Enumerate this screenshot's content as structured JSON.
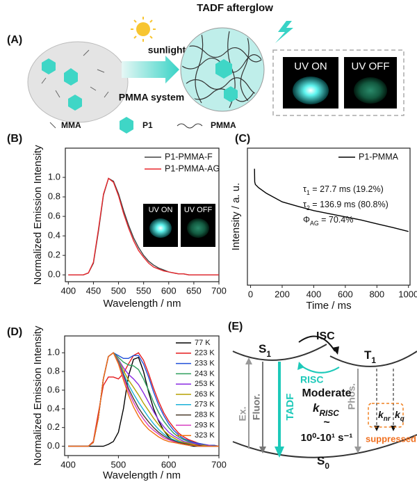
{
  "panel_a": {
    "label": "(A)",
    "sunlight": "sunlight",
    "system": "PMMA system",
    "afterglow": "TADF afterglow",
    "uv_on": "UV ON",
    "uv_off": "UV OFF",
    "legend": [
      "MMA",
      "P1",
      "PMMA"
    ]
  },
  "chart_data": [
    {
      "type": "line",
      "panel_label": "(B)",
      "ylabel": "Normalized Emission Intensity",
      "xlabel": "Wavelength / nm",
      "xlim": [
        394,
        700
      ],
      "ylim": [
        -0.07,
        1.3
      ],
      "xticks": [
        400,
        450,
        500,
        550,
        600,
        650,
        700
      ],
      "yticks": [
        {
          "value": 0,
          "label": "0.0"
        },
        0.2,
        0.4,
        0.6,
        0.8,
        {
          "value": 1,
          "label": "1.0"
        }
      ],
      "legend": "upper right",
      "inset_labels": [
        "UV ON",
        "UV OFF"
      ],
      "x": [
        400,
        410,
        420,
        430,
        440,
        450,
        460,
        470,
        480,
        490,
        500,
        510,
        520,
        530,
        540,
        550,
        560,
        570,
        580,
        590,
        600,
        610,
        620,
        630,
        640,
        650,
        660,
        670,
        680,
        690,
        700
      ],
      "series": [
        {
          "name": "P1-PMMA-F",
          "color": "#404040",
          "values": [
            0,
            0,
            0,
            0,
            0.02,
            0.12,
            0.45,
            0.82,
            0.99,
            0.96,
            0.83,
            0.66,
            0.51,
            0.38,
            0.28,
            0.2,
            0.14,
            0.1,
            0.07,
            0.05,
            0.03,
            0.02,
            0.01,
            0.01,
            0,
            0,
            0,
            0,
            0,
            0,
            0
          ]
        },
        {
          "name": "P1-PMMA-AG",
          "color": "#e8262b",
          "values": [
            0,
            0,
            0,
            0,
            0.02,
            0.13,
            0.47,
            0.83,
            0.99,
            0.95,
            0.81,
            0.63,
            0.48,
            0.35,
            0.25,
            0.18,
            0.12,
            0.08,
            0.06,
            0.04,
            0.03,
            0.02,
            0.01,
            0.01,
            0,
            0,
            0,
            0,
            0,
            0,
            0
          ]
        }
      ]
    },
    {
      "type": "line",
      "panel_label": "(C)",
      "ylabel": "Intensity / a. u.",
      "xlabel": "Time / ms",
      "log_y": true,
      "xlim": [
        -20,
        1010
      ],
      "ylim": [
        1,
        3000
      ],
      "xticks": [
        0,
        200,
        400,
        600,
        800,
        1000
      ],
      "legend": "upper right",
      "annotations": [
        {
          "symbol": "τ",
          "sub": "1",
          "text": " = 27.7 ms (19.2%)"
        },
        {
          "symbol": "τ",
          "sub": "2",
          "text": " = 136.9 ms (80.8%)"
        },
        {
          "symbol": "Φ",
          "sub": "AG",
          "text": " = 70.4%"
        }
      ],
      "x": [
        25,
        26,
        30,
        50,
        100,
        200,
        300,
        400,
        500,
        600,
        700,
        800,
        900,
        1000
      ],
      "series": [
        {
          "name": "P1-PMMA",
          "color": "#000000",
          "values": [
            900,
            420,
            360,
            300,
            215,
            130,
            100,
            78,
            65,
            54,
            45,
            36,
            29,
            23
          ]
        }
      ]
    },
    {
      "type": "line",
      "panel_label": "(D)",
      "ylabel": "Normalized Emission Intensity",
      "xlabel": "Wavelength / nm",
      "xlim": [
        393,
        700
      ],
      "ylim": [
        -0.1,
        1.18
      ],
      "xticks": [
        400,
        500,
        600,
        700
      ],
      "yticks": [
        {
          "value": 0,
          "label": "0.0"
        },
        0.2,
        0.4,
        0.6,
        0.8,
        {
          "value": 1,
          "label": "1.0"
        }
      ],
      "legend": "upper right",
      "x": [
        400,
        410,
        420,
        430,
        440,
        450,
        460,
        470,
        480,
        490,
        500,
        510,
        520,
        530,
        540,
        550,
        560,
        570,
        580,
        590,
        600,
        610,
        620,
        630,
        640,
        650,
        660,
        670,
        680,
        690,
        700
      ],
      "series": [
        {
          "name": "77 K",
          "color": "#000000",
          "values": [
            0,
            0,
            0,
            0,
            0,
            0,
            0,
            0,
            0.02,
            0.05,
            0.15,
            0.4,
            0.75,
            0.93,
            0.95,
            0.8,
            0.58,
            0.4,
            0.27,
            0.17,
            0.1,
            0.06,
            0.03,
            0.02,
            0.01,
            0,
            0,
            0,
            0,
            0,
            0
          ]
        },
        {
          "name": "223 K",
          "color": "#e41a1c",
          "values": [
            0,
            0,
            0,
            0,
            0,
            0.05,
            0.35,
            0.65,
            0.74,
            0.74,
            0.72,
            0.78,
            0.88,
            0.97,
            1.0,
            0.92,
            0.78,
            0.62,
            0.48,
            0.36,
            0.27,
            0.2,
            0.14,
            0.1,
            0.07,
            0.05,
            0.03,
            0.02,
            0.01,
            0.01,
            0
          ]
        },
        {
          "name": "233 K",
          "color": "#1f4fd8",
          "values": [
            0,
            0,
            0,
            0,
            0,
            0.04,
            0.3,
            0.72,
            0.96,
            1.0,
            0.97,
            0.94,
            0.94,
            0.97,
            0.97,
            0.88,
            0.74,
            0.58,
            0.44,
            0.33,
            0.24,
            0.17,
            0.12,
            0.08,
            0.06,
            0.04,
            0.03,
            0.02,
            0.01,
            0.01,
            0
          ]
        },
        {
          "name": "243 K",
          "color": "#2e9e5b",
          "values": [
            0,
            0,
            0,
            0,
            0,
            0.04,
            0.3,
            0.72,
            0.96,
            1.0,
            0.95,
            0.9,
            0.87,
            0.86,
            0.82,
            0.72,
            0.6,
            0.47,
            0.36,
            0.27,
            0.2,
            0.14,
            0.1,
            0.07,
            0.05,
            0.03,
            0.02,
            0.01,
            0.01,
            0,
            0
          ]
        },
        {
          "name": "253 K",
          "color": "#8a2be2",
          "values": [
            0,
            0,
            0,
            0,
            0,
            0.04,
            0.3,
            0.72,
            0.96,
            1.0,
            0.93,
            0.84,
            0.77,
            0.72,
            0.66,
            0.57,
            0.47,
            0.37,
            0.28,
            0.21,
            0.15,
            0.11,
            0.08,
            0.05,
            0.04,
            0.03,
            0.02,
            0.01,
            0.01,
            0,
            0
          ]
        },
        {
          "name": "263 K",
          "color": "#b5a000",
          "values": [
            0,
            0,
            0,
            0,
            0,
            0.04,
            0.3,
            0.72,
            0.96,
            1.0,
            0.92,
            0.81,
            0.71,
            0.63,
            0.55,
            0.46,
            0.38,
            0.3,
            0.23,
            0.17,
            0.12,
            0.09,
            0.06,
            0.04,
            0.03,
            0.02,
            0.01,
            0.01,
            0,
            0,
            0
          ]
        },
        {
          "name": "273 K",
          "color": "#1ab0d8",
          "values": [
            0,
            0,
            0,
            0,
            0,
            0.04,
            0.3,
            0.72,
            0.96,
            1.0,
            0.91,
            0.78,
            0.66,
            0.56,
            0.47,
            0.39,
            0.31,
            0.24,
            0.18,
            0.13,
            0.09,
            0.07,
            0.05,
            0.03,
            0.02,
            0.01,
            0.01,
            0,
            0,
            0,
            0
          ]
        },
        {
          "name": "283 K",
          "color": "#4a3b2a",
          "values": [
            0,
            0,
            0,
            0,
            0,
            0.04,
            0.3,
            0.72,
            0.96,
            1.0,
            0.9,
            0.76,
            0.62,
            0.51,
            0.41,
            0.33,
            0.26,
            0.2,
            0.15,
            0.11,
            0.08,
            0.06,
            0.04,
            0.03,
            0.02,
            0.01,
            0.01,
            0,
            0,
            0,
            0
          ]
        },
        {
          "name": "293 K",
          "color": "#d63cc0",
          "values": [
            0,
            0,
            0,
            0,
            0,
            0.04,
            0.3,
            0.72,
            0.96,
            1.0,
            0.89,
            0.74,
            0.59,
            0.47,
            0.37,
            0.29,
            0.22,
            0.17,
            0.13,
            0.09,
            0.07,
            0.05,
            0.03,
            0.02,
            0.01,
            0.01,
            0,
            0,
            0,
            0,
            0
          ]
        },
        {
          "name": "323 K",
          "color": "#f07010",
          "values": [
            0,
            0,
            0,
            0,
            0,
            0.04,
            0.3,
            0.72,
            0.96,
            1.0,
            0.88,
            0.71,
            0.55,
            0.42,
            0.32,
            0.24,
            0.18,
            0.14,
            0.1,
            0.07,
            0.05,
            0.04,
            0.03,
            0.02,
            0.01,
            0.01,
            0,
            0,
            0,
            0,
            0
          ]
        }
      ]
    }
  ],
  "panel_e": {
    "label": "(E)",
    "isc": "ISC",
    "s1": {
      "text": "S",
      "sub": "1"
    },
    "t1": {
      "text": "T",
      "sub": "1"
    },
    "s0": {
      "text": "S",
      "sub": "0"
    },
    "risc": "RISC",
    "ex": "Ex.",
    "fluor": "Fluor.",
    "tadf": "TADF",
    "phos": "Phos.",
    "moderate": "Moderate",
    "krisc": {
      "text": "k",
      "sub": "RISC"
    },
    "tilde": "~",
    "rate": "10⁰-10¹ s⁻¹",
    "knr": {
      "text": "k",
      "sub": "nr"
    },
    "kq": {
      "text": "k",
      "sub": "q"
    },
    "suppressed": "suppressed"
  }
}
